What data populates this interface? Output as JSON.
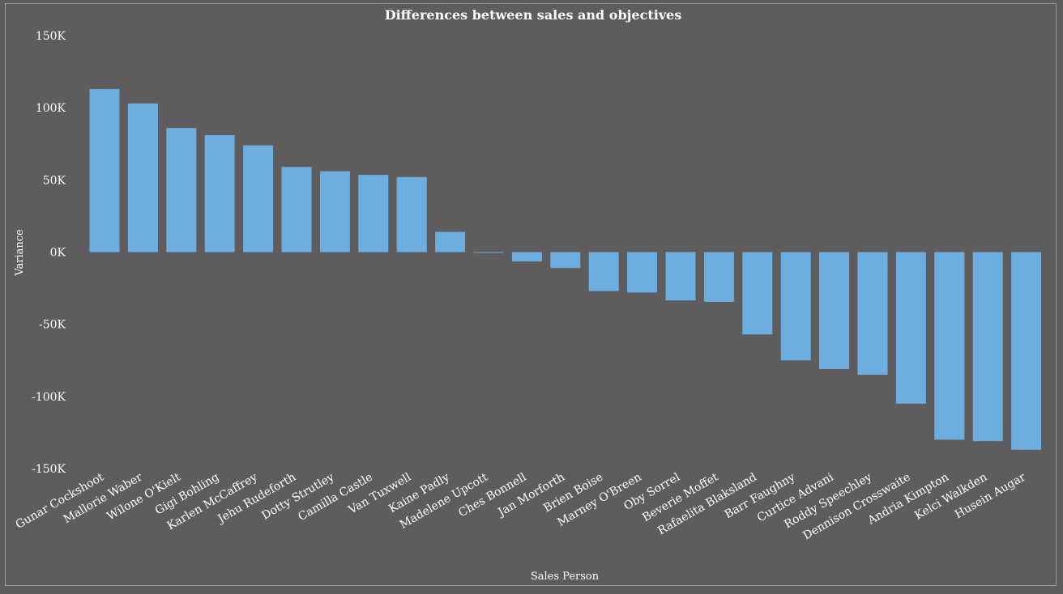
{
  "chart_data": {
    "type": "bar",
    "title": "Differences between sales and objectives",
    "xlabel": "Sales Person",
    "ylabel": "Variance",
    "ylim": [
      -150000,
      150000
    ],
    "yticks": [
      150000,
      100000,
      50000,
      0,
      -50000,
      -100000,
      -150000
    ],
    "ytick_labels": [
      "150K",
      "100K",
      "50K",
      "0K",
      "-50K",
      "-100K",
      "-150K"
    ],
    "grid": false,
    "bar_color": "#6daee0",
    "categories": [
      "Gunar Cockshoot",
      "Mallorie Waber",
      "Wilone O'Kielt",
      "Gigi Bohling",
      "Karlen McCaffrey",
      "Jehu Rudeforth",
      "Dotty Strutley",
      "Camilla Castle",
      "Van Tuxwell",
      "Kaine Padly",
      "Madelene Upcott",
      "Ches Bonnell",
      "Jan Morforth",
      "Brien Boise",
      "Marney O'Breen",
      "Oby Sorrel",
      "Beverie Moffet",
      "Rafaelita Blaksland",
      "Barr Faughny",
      "Curtice Advani",
      "Roddy Speechley",
      "Dennison Crosswaite",
      "Andria Kimpton",
      "Kelci Walkden",
      "Husein Augar"
    ],
    "values": [
      113000,
      103000,
      86000,
      81000,
      74000,
      59000,
      56000,
      53500,
      52000,
      14000,
      -500,
      -6500,
      -11000,
      -27000,
      -28000,
      -33500,
      -34500,
      -57000,
      -75000,
      -81000,
      -85000,
      -105000,
      -130000,
      -131000,
      -137000
    ]
  }
}
